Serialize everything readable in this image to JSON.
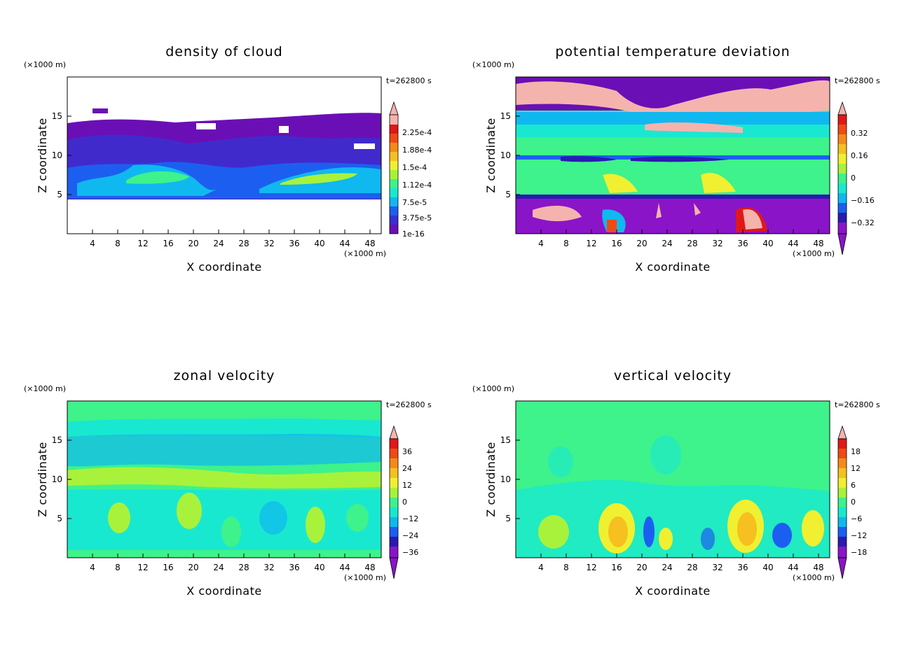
{
  "chart_data": [
    {
      "type": "heatmap",
      "title": "density of cloud",
      "xlabel": "X coordinate",
      "ylabel": "Z coordinate",
      "x_unit": "(×1000 m)",
      "y_unit": "(×1000 m)",
      "time_label": "t=262800 s",
      "xlim": [
        0,
        50
      ],
      "ylim": [
        0,
        20
      ],
      "x_ticks": [
        "4",
        "8",
        "12",
        "16",
        "20",
        "24",
        "28",
        "32",
        "36",
        "40",
        "44",
        "48"
      ],
      "y_ticks": [
        "5",
        "10",
        "15"
      ],
      "colorbar_ticks": [
        "2.25e-4",
        "1.88e-4",
        "1.5e-4",
        "1.12e-4",
        "7.5e-5",
        "3.75e-5",
        "1e-16"
      ],
      "colors": [
        "#6a0fb5",
        "#3a2fd0",
        "#1c5ff0",
        "#10b8f0",
        "#19e8d0",
        "#3ef28c",
        "#a8f23c",
        "#f0f030",
        "#f5c020",
        "#f58a18",
        "#f04a14",
        "#e01818",
        "#f5b3ae"
      ]
    },
    {
      "type": "heatmap",
      "title": "potential temperature deviation",
      "xlabel": "X coordinate",
      "ylabel": "Z coordinate",
      "x_unit": "(×1000 m)",
      "y_unit": "(×1000 m)",
      "time_label": "t=262800 s",
      "xlim": [
        0,
        50
      ],
      "ylim": [
        0,
        20
      ],
      "x_ticks": [
        "4",
        "8",
        "12",
        "16",
        "20",
        "24",
        "28",
        "32",
        "36",
        "40",
        "44",
        "48"
      ],
      "y_ticks": [
        "5",
        "10",
        "15"
      ],
      "colorbar_ticks": [
        "0.32",
        "0.16",
        "0",
        "−0.16",
        "−0.32"
      ],
      "colors": [
        "#8a14c8",
        "#2a1ab0",
        "#1c5ff0",
        "#10b8f0",
        "#19e8d0",
        "#3ef28c",
        "#a8f23c",
        "#f0f030",
        "#f5c020",
        "#f58a18",
        "#f04a14",
        "#e01818",
        "#f5b3ae"
      ]
    },
    {
      "type": "heatmap",
      "title": "zonal velocity",
      "xlabel": "X coordinate",
      "ylabel": "Z coordinate",
      "x_unit": "(×1000 m)",
      "y_unit": "(×1000 m)",
      "time_label": "t=262800 s",
      "xlim": [
        0,
        50
      ],
      "ylim": [
        0,
        20
      ],
      "x_ticks": [
        "4",
        "8",
        "12",
        "16",
        "20",
        "24",
        "28",
        "32",
        "36",
        "40",
        "44",
        "48"
      ],
      "y_ticks": [
        "5",
        "10",
        "15"
      ],
      "colorbar_ticks": [
        "36",
        "24",
        "12",
        "0",
        "−12",
        "−24",
        "−36"
      ],
      "colors": [
        "#8a14c8",
        "#2a1ab0",
        "#1c5ff0",
        "#10b8f0",
        "#19e8d0",
        "#3ef28c",
        "#a8f23c",
        "#f0f030",
        "#f5c020",
        "#f58a18",
        "#f04a14",
        "#e01818",
        "#f5b3ae"
      ]
    },
    {
      "type": "heatmap",
      "title": "vertical velocity",
      "xlabel": "X coordinate",
      "ylabel": "Z coordinate",
      "x_unit": "(×1000 m)",
      "y_unit": "(×1000 m)",
      "time_label": "t=262800 s",
      "xlim": [
        0,
        50
      ],
      "ylim": [
        0,
        20
      ],
      "x_ticks": [
        "4",
        "8",
        "12",
        "16",
        "20",
        "24",
        "28",
        "32",
        "36",
        "40",
        "44",
        "48"
      ],
      "y_ticks": [
        "5",
        "10",
        "15"
      ],
      "colorbar_ticks": [
        "18",
        "12",
        "6",
        "0",
        "−6",
        "−12",
        "−18"
      ],
      "colors": [
        "#8a14c8",
        "#2a1ab0",
        "#1c5ff0",
        "#10b8f0",
        "#19e8d0",
        "#3ef28c",
        "#a8f23c",
        "#f0f030",
        "#f5c020",
        "#f58a18",
        "#f04a14",
        "#e01818",
        "#f5b3ae"
      ]
    }
  ]
}
